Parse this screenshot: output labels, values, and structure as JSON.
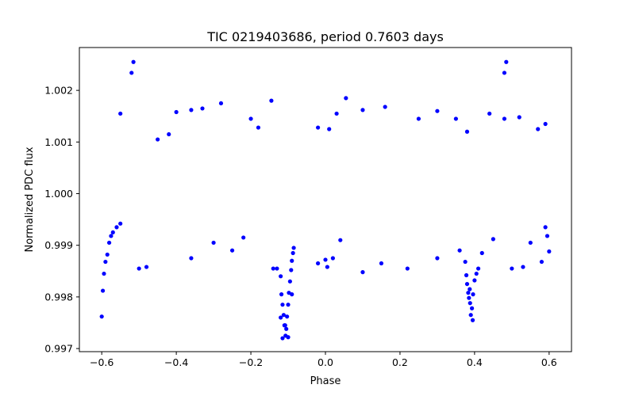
{
  "chart_data": {
    "type": "scatter",
    "title": "TIC 0219403686, period 0.7603 days",
    "xlabel": "Phase",
    "ylabel": "Normalized PDC flux",
    "xlim": [
      -0.66,
      0.66
    ],
    "ylim": [
      0.99694,
      1.00283
    ],
    "xticks": [
      {
        "value": -0.6,
        "label": "−0.6"
      },
      {
        "value": -0.4,
        "label": "−0.4"
      },
      {
        "value": -0.2,
        "label": "−0.2"
      },
      {
        "value": 0.0,
        "label": "0.0"
      },
      {
        "value": 0.2,
        "label": "0.2"
      },
      {
        "value": 0.4,
        "label": "0.4"
      },
      {
        "value": 0.6,
        "label": "0.6"
      }
    ],
    "yticks": [
      {
        "value": 0.997,
        "label": "0.997"
      },
      {
        "value": 0.998,
        "label": "0.998"
      },
      {
        "value": 0.999,
        "label": "0.999"
      },
      {
        "value": 1.0,
        "label": "1.000"
      },
      {
        "value": 1.001,
        "label": "1.001"
      },
      {
        "value": 1.002,
        "label": "1.002"
      }
    ],
    "grid": false,
    "marker_color": "#0000ff",
    "series": [
      {
        "points": [
          [
            -0.6,
            0.99762
          ],
          [
            -0.597,
            0.99812
          ],
          [
            -0.594,
            0.99845
          ],
          [
            -0.59,
            0.99868
          ],
          [
            -0.585,
            0.99882
          ],
          [
            -0.58,
            0.99905
          ],
          [
            -0.575,
            0.99918
          ],
          [
            -0.57,
            0.99925
          ],
          [
            -0.56,
            0.99935
          ],
          [
            -0.55,
            0.99942
          ],
          [
            -0.515,
            1.00255
          ],
          [
            -0.52,
            1.00234
          ],
          [
            -0.5,
            0.99855
          ],
          [
            -0.48,
            0.99858
          ],
          [
            -0.55,
            1.00155
          ],
          [
            -0.45,
            1.00105
          ],
          [
            -0.42,
            1.00115
          ],
          [
            -0.4,
            1.00158
          ],
          [
            -0.36,
            1.00162
          ],
          [
            -0.33,
            1.00165
          ],
          [
            -0.28,
            1.00175
          ],
          [
            -0.36,
            0.99875
          ],
          [
            -0.3,
            0.99905
          ],
          [
            -0.25,
            0.9989
          ],
          [
            -0.22,
            0.99915
          ],
          [
            -0.18,
            1.00128
          ],
          [
            -0.145,
            1.0018
          ],
          [
            -0.2,
            1.00145
          ],
          [
            -0.14,
            0.99855
          ],
          [
            -0.13,
            0.99855
          ],
          [
            -0.12,
            0.9984
          ],
          [
            -0.118,
            0.99805
          ],
          [
            -0.115,
            0.99785
          ],
          [
            -0.112,
            0.99765
          ],
          [
            -0.11,
            0.99745
          ],
          [
            -0.107,
            0.99725
          ],
          [
            -0.105,
            0.99738
          ],
          [
            -0.103,
            0.99762
          ],
          [
            -0.1,
            0.99785
          ],
          [
            -0.098,
            0.99808
          ],
          [
            -0.095,
            0.9983
          ],
          [
            -0.092,
            0.99852
          ],
          [
            -0.09,
            0.9987
          ],
          [
            -0.087,
            0.99885
          ],
          [
            -0.085,
            0.99895
          ],
          [
            -0.115,
            0.9972
          ],
          [
            -0.1,
            0.99722
          ],
          [
            -0.108,
            0.99745
          ],
          [
            -0.12,
            0.9976
          ],
          [
            -0.09,
            0.99805
          ],
          [
            -0.02,
            0.99865
          ],
          [
            0.0,
            0.99872
          ],
          [
            0.005,
            0.99858
          ],
          [
            0.02,
            0.99875
          ],
          [
            0.04,
            0.9991
          ],
          [
            -0.02,
            1.00128
          ],
          [
            0.01,
            1.00125
          ],
          [
            0.055,
            1.00185
          ],
          [
            0.03,
            1.00155
          ],
          [
            0.1,
            1.00162
          ],
          [
            0.16,
            1.00168
          ],
          [
            0.25,
            1.00145
          ],
          [
            0.3,
            1.0016
          ],
          [
            0.35,
            1.00145
          ],
          [
            0.38,
            1.0012
          ],
          [
            0.1,
            0.99848
          ],
          [
            0.15,
            0.99865
          ],
          [
            0.22,
            0.99855
          ],
          [
            0.3,
            0.99875
          ],
          [
            0.36,
            0.9989
          ],
          [
            0.375,
            0.99868
          ],
          [
            0.378,
            0.99842
          ],
          [
            0.38,
            0.99825
          ],
          [
            0.383,
            0.99808
          ],
          [
            0.385,
            0.99798
          ],
          [
            0.388,
            0.99788
          ],
          [
            0.39,
            0.99765
          ],
          [
            0.393,
            0.99778
          ],
          [
            0.396,
            0.99805
          ],
          [
            0.4,
            0.99832
          ],
          [
            0.405,
            0.99845
          ],
          [
            0.41,
            0.99855
          ],
          [
            0.42,
            0.99885
          ],
          [
            0.395,
            0.99755
          ],
          [
            0.387,
            0.99815
          ],
          [
            0.44,
            1.00155
          ],
          [
            0.48,
            1.00145
          ],
          [
            0.52,
            1.00148
          ],
          [
            0.57,
            1.00125
          ],
          [
            0.59,
            1.00135
          ],
          [
            0.485,
            1.00255
          ],
          [
            0.48,
            1.00234
          ],
          [
            0.5,
            0.99855
          ],
          [
            0.53,
            0.99858
          ],
          [
            0.58,
            0.99868
          ],
          [
            0.6,
            0.99888
          ],
          [
            0.595,
            0.99918
          ],
          [
            0.59,
            0.99935
          ],
          [
            0.45,
            0.99912
          ],
          [
            0.55,
            0.99905
          ]
        ]
      }
    ]
  }
}
